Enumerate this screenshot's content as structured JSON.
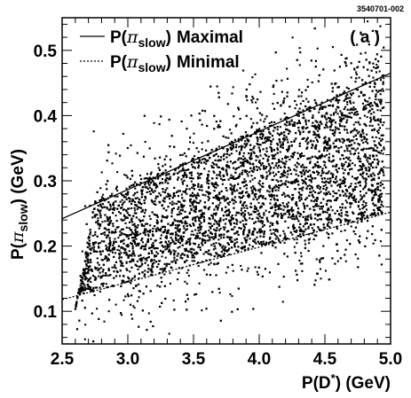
{
  "figure_tag": "3540701-002",
  "panel_label": "( a )",
  "legend": {
    "entries": [
      {
        "prefix": "P(",
        "greek": "π",
        "sub": "slow",
        "suffix": ")",
        "name": "Maximal",
        "style": "solid"
      },
      {
        "prefix": "P(",
        "greek": "π",
        "sub": "slow",
        "suffix": ")",
        "name": "Minimal",
        "style": "dotted"
      }
    ]
  },
  "chart_data": {
    "type": "scatter",
    "xlabel": "P(D*) (GeV)",
    "ylabel": "P(πslow) (GeV)",
    "xlabel_parts": {
      "before": "P(D",
      "sup": "*",
      "after": ") (GeV)"
    },
    "ylabel_parts": {
      "before": "P(",
      "greek": "π",
      "sub": "slow",
      "after": ") (GeV)"
    },
    "xlim": [
      2.5,
      5.0
    ],
    "ylim": [
      0.05,
      0.55
    ],
    "xticks": [
      2.5,
      3.0,
      3.5,
      4.0,
      4.5,
      5.0
    ],
    "xtick_labels": [
      "2.5",
      "3.0",
      "3.5",
      "4.0",
      "4.5",
      "5.0"
    ],
    "yticks": [
      0.1,
      0.2,
      0.3,
      0.4,
      0.5
    ],
    "ytick_labels": [
      "0.1",
      "0.2",
      "0.3",
      "0.4",
      "0.5"
    ],
    "grid": false,
    "series": [
      {
        "name": "Maximal",
        "kind": "line",
        "style": "solid",
        "x": [
          2.5,
          5.0
        ],
        "y": [
          0.242,
          0.465
        ]
      },
      {
        "name": "Minimal",
        "kind": "line",
        "style": "dotted",
        "x": [
          2.5,
          5.0
        ],
        "y": [
          0.118,
          0.252
        ]
      }
    ],
    "scatter_region": {
      "description_points": "dense band of simulated events",
      "x_range": [
        2.6,
        4.95
      ],
      "upper_edge": {
        "x": [
          2.75,
          4.85
        ],
        "y": [
          0.27,
          0.455
        ]
      },
      "lower_edge": {
        "x": [
          2.62,
          4.9
        ],
        "y": [
          0.125,
          0.245
        ]
      },
      "left_edge": {
        "x": [
          2.62,
          2.75
        ],
        "y": [
          0.125,
          0.27
        ]
      },
      "point_count": 6500,
      "outlier_fraction": 0.12
    },
    "legend_position": "top-left",
    "marker_color": "#000000"
  }
}
